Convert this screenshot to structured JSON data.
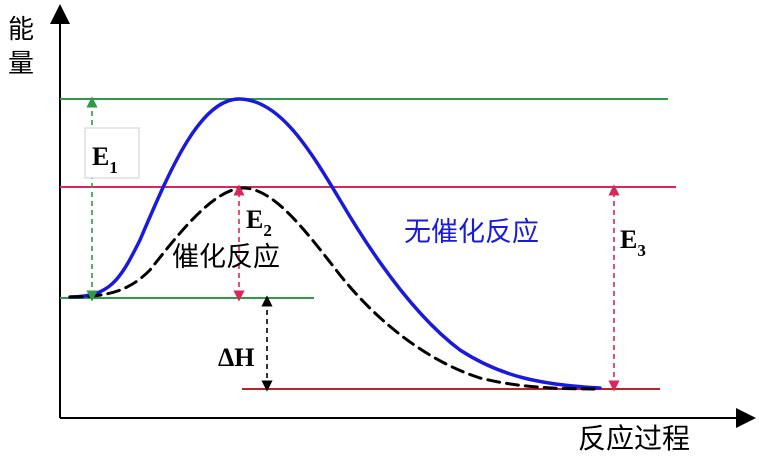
{
  "axes": {
    "y_label": "能量",
    "x_label": "反应过程"
  },
  "labels": {
    "e1": "E",
    "e1_sub": "1",
    "e2": "E",
    "e2_sub": "2",
    "e3": "E",
    "e3_sub": "3",
    "delta_h": "ΔH",
    "uncatalyzed": "无催化反应",
    "catalyzed": "催化反应"
  },
  "colors": {
    "uncatalyzed_curve": "#1a1adf",
    "catalyzed_curve": "#000000",
    "green_line": "#2e9a4a",
    "red_line": "#d8285a",
    "dark_red_line": "#c0202a",
    "uncatalyzed_text": "#1a1adf"
  }
}
